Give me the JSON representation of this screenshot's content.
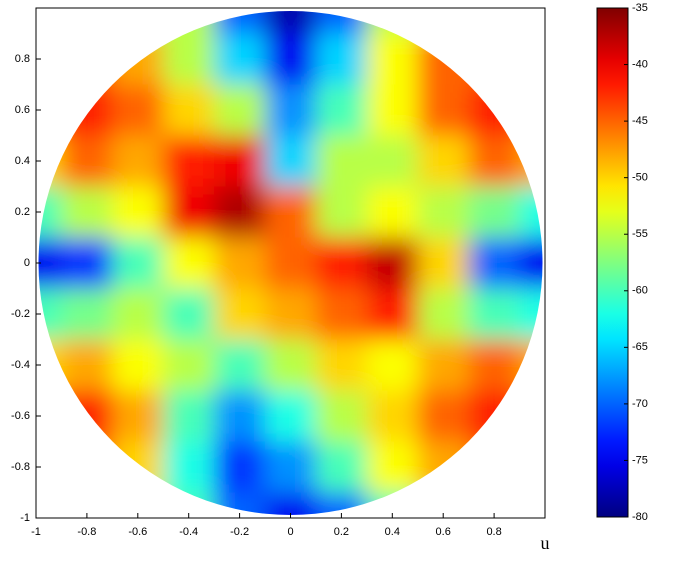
{
  "chart_data": {
    "type": "contour",
    "xlabel": "u",
    "xlim": [
      -1,
      1
    ],
    "ylim": [
      -1,
      1
    ],
    "xticks": [
      -1,
      -0.8,
      -0.6,
      -0.4,
      -0.2,
      0,
      0.2,
      0.4,
      0.6,
      0.8
    ],
    "yticks": [
      -1,
      -0.8,
      -0.6,
      -0.4,
      -0.2,
      0,
      0.2,
      0.4,
      0.6,
      0.8
    ],
    "x": [
      -1,
      -0.8,
      -0.6,
      -0.4,
      -0.2,
      0,
      0.2,
      0.4,
      0.6,
      0.8,
      1
    ],
    "y": [
      1,
      0.8,
      0.6,
      0.4,
      0.2,
      0,
      -0.2,
      -0.4,
      -0.6,
      -0.8,
      -1
    ],
    "z": [
      [
        -55,
        -55,
        -55,
        -55,
        -70,
        -78,
        -70,
        -55,
        -55,
        -55,
        -55
      ],
      [
        -45,
        -45,
        -48,
        -55,
        -65,
        -75,
        -65,
        -52,
        -45,
        -45,
        -45
      ],
      [
        -45,
        -42,
        -45,
        -50,
        -55,
        -68,
        -60,
        -52,
        -45,
        -42,
        -45
      ],
      [
        -50,
        -45,
        -48,
        -42,
        -40,
        -65,
        -55,
        -55,
        -50,
        -45,
        -48
      ],
      [
        -60,
        -55,
        -52,
        -40,
        -37,
        -45,
        -55,
        -52,
        -55,
        -58,
        -62
      ],
      [
        -75,
        -72,
        -60,
        -52,
        -48,
        -45,
        -42,
        -38,
        -50,
        -70,
        -75
      ],
      [
        -60,
        -58,
        -55,
        -60,
        -50,
        -48,
        -45,
        -42,
        -55,
        -60,
        -62
      ],
      [
        -50,
        -48,
        -52,
        -55,
        -60,
        -55,
        -50,
        -52,
        -48,
        -45,
        -48
      ],
      [
        -45,
        -42,
        -48,
        -60,
        -68,
        -62,
        -55,
        -50,
        -45,
        -42,
        -45
      ],
      [
        -45,
        -45,
        -50,
        -62,
        -72,
        -68,
        -60,
        -52,
        -48,
        -45,
        -45
      ],
      [
        -55,
        -55,
        -55,
        -60,
        -70,
        -75,
        -70,
        -60,
        -55,
        -55,
        -55
      ]
    ],
    "colormap": "jet",
    "clim": [
      -80,
      -35
    ],
    "cticks": [
      -80,
      -75,
      -70,
      -65,
      -60,
      -55,
      -50,
      -45,
      -40,
      -35
    ]
  }
}
